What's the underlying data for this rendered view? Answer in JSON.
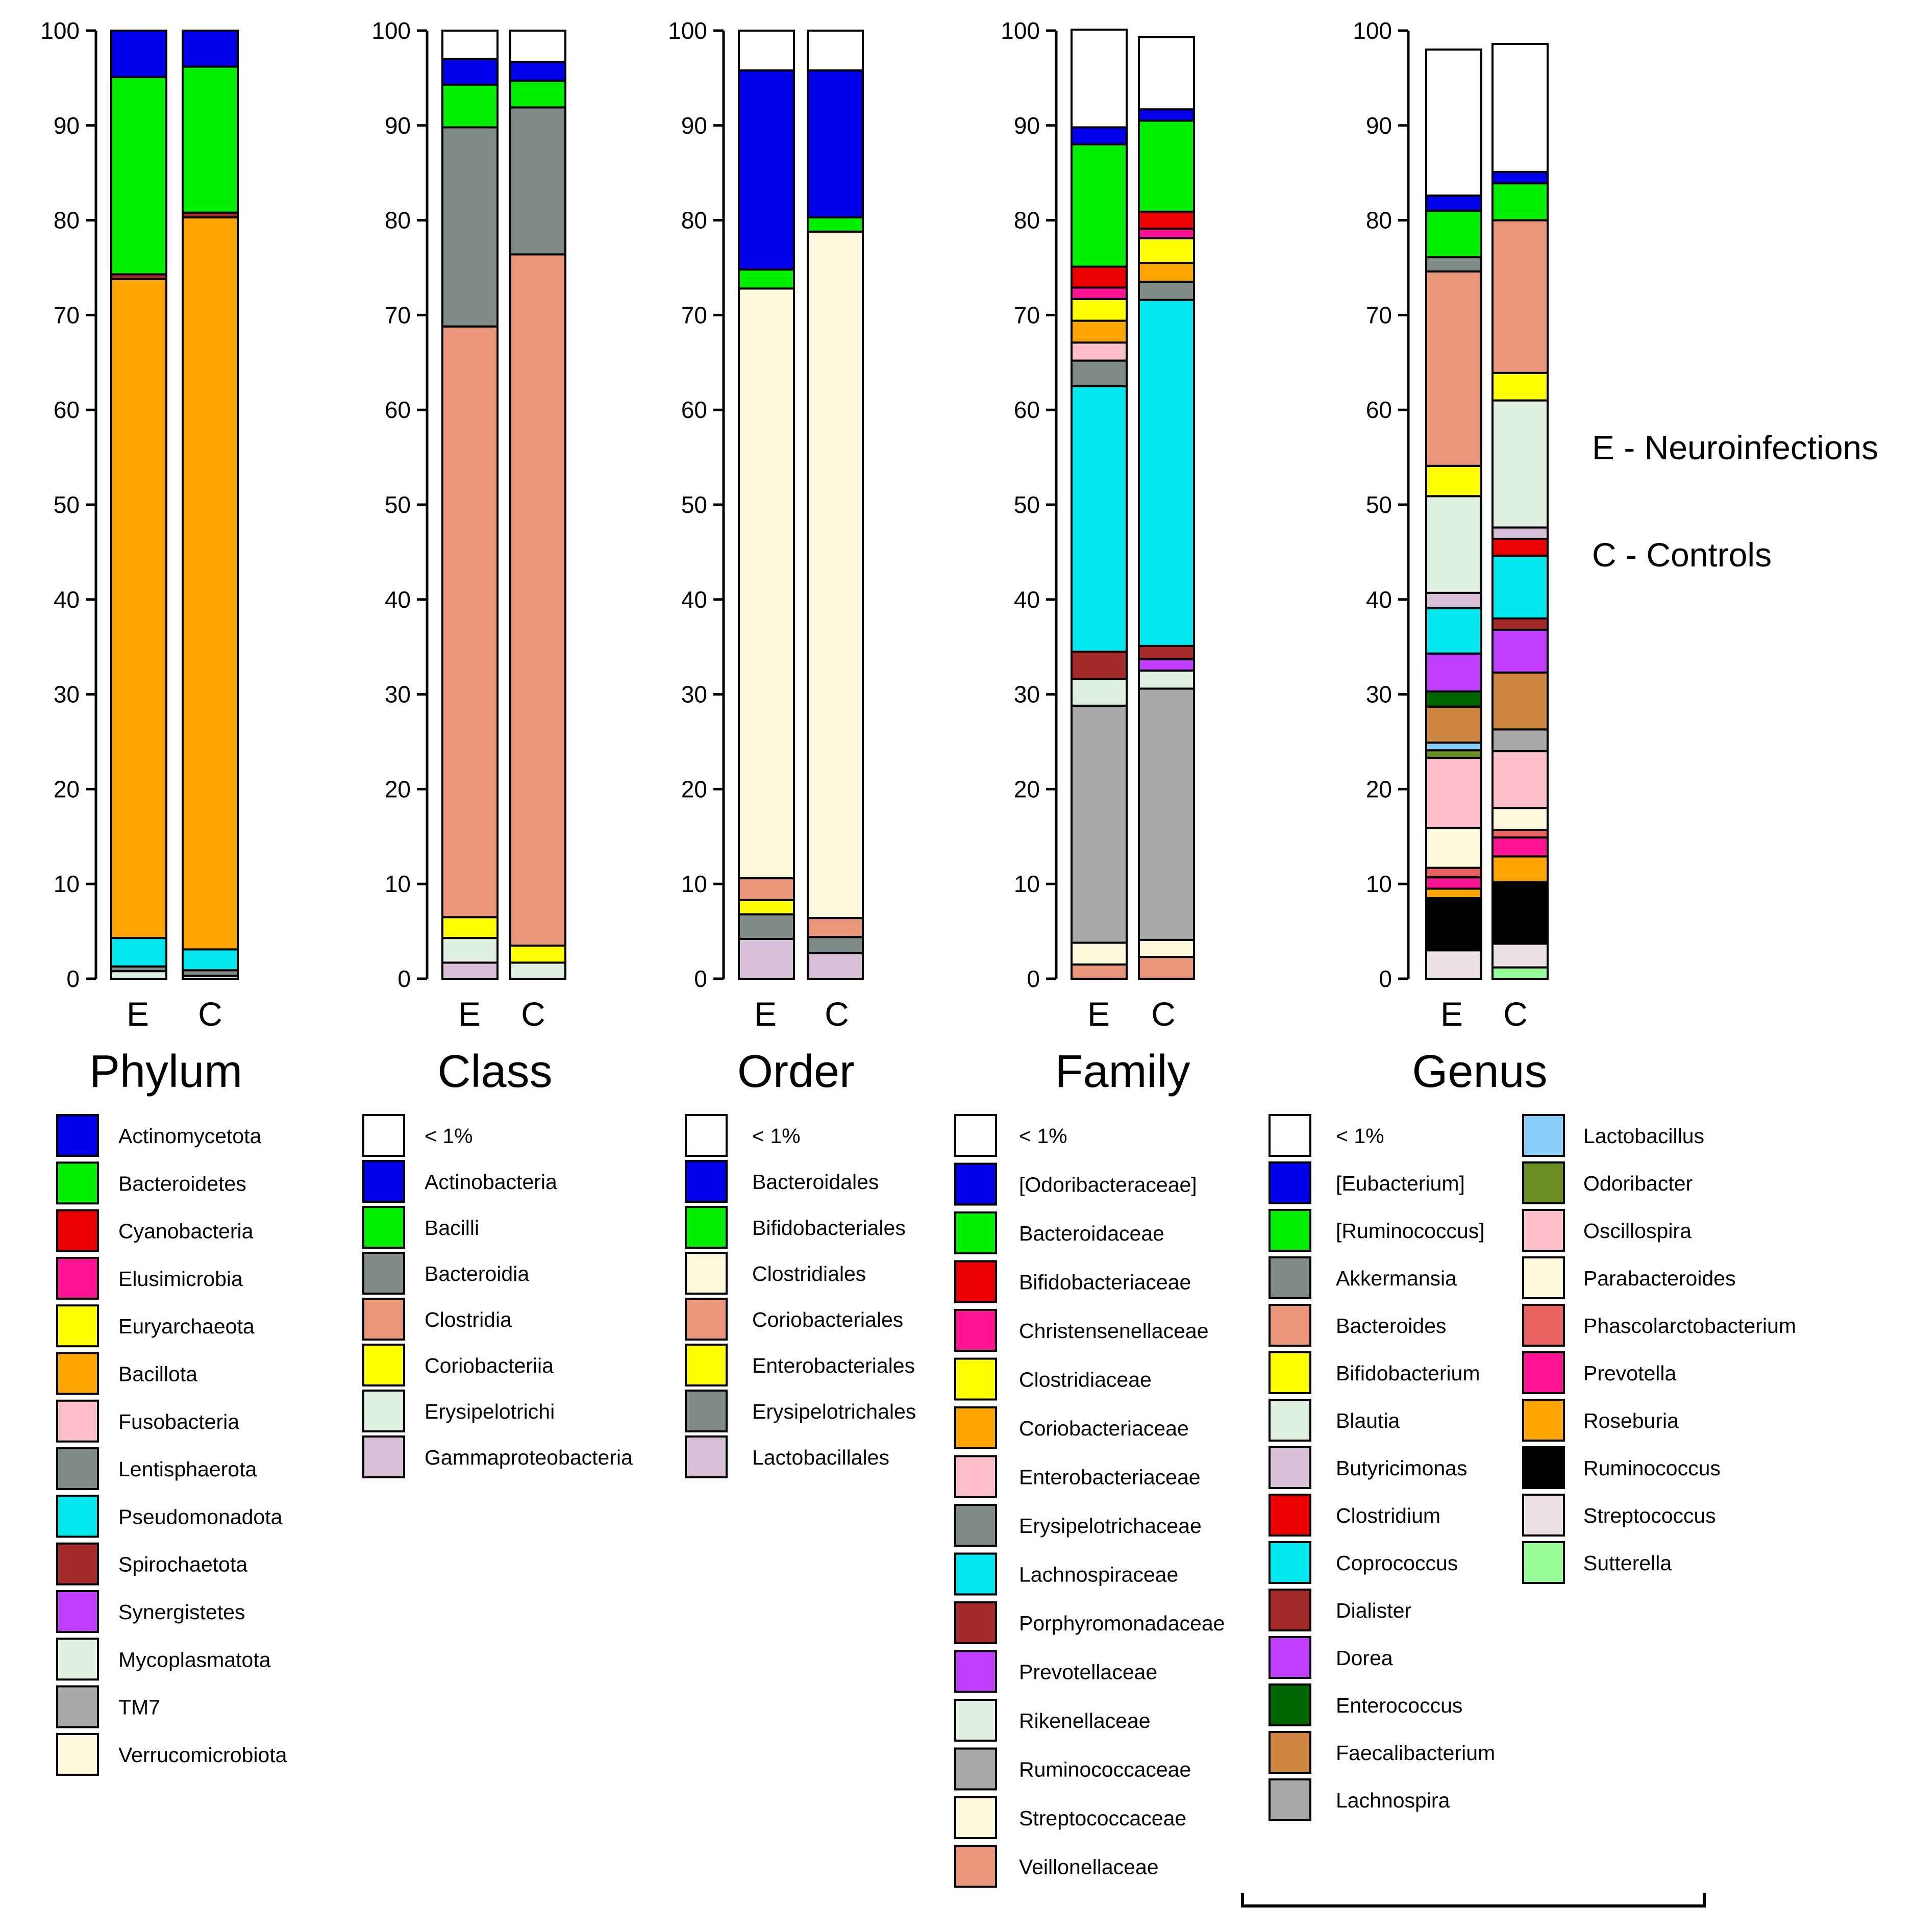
{
  "notes": {
    "e_label": "E - Neuroinfections",
    "c_label": "C - Controls"
  },
  "chart_data": [
    {
      "type": "bar",
      "stacked": true,
      "title": "Phylum",
      "categories": [
        "E",
        "C"
      ],
      "ylim": [
        0,
        100
      ],
      "yticks": [
        0,
        10,
        20,
        30,
        40,
        50,
        60,
        70,
        80,
        90,
        100
      ],
      "series": [
        {
          "name": "Mycoplasmatota",
          "color": "#e0f0e0",
          "values": [
            0.8,
            0.3
          ]
        },
        {
          "name": "Lentisphaerota",
          "color": "#7f8c8a",
          "values": [
            0.5,
            0.6
          ]
        },
        {
          "name": "Pseudomonadota",
          "color": "#00e8ee",
          "values": [
            3.0,
            2.2
          ]
        },
        {
          "name": "Bacillota",
          "color": "#ffa500",
          "values": [
            69.5,
            77.2
          ]
        },
        {
          "name": "Spirochaetota",
          "color": "#a52a2a",
          "values": [
            0.5,
            0.5
          ]
        },
        {
          "name": "Bacteroidetes",
          "color": "#00ee00",
          "values": [
            20.8,
            15.4
          ]
        },
        {
          "name": "Actinomycetota",
          "color": "#0000ee",
          "values": [
            4.9,
            3.8
          ]
        }
      ]
    },
    {
      "type": "bar",
      "stacked": true,
      "title": "Class",
      "categories": [
        "E",
        "C"
      ],
      "ylim": [
        0,
        100
      ],
      "yticks": [
        0,
        10,
        20,
        30,
        40,
        50,
        60,
        70,
        80,
        90,
        100
      ],
      "series": [
        {
          "name": "Gammaproteobacteria",
          "color": "#d8bfd8",
          "values": [
            1.7,
            0.0
          ]
        },
        {
          "name": "Erysipelotrichi",
          "color": "#e0f0e0",
          "values": [
            2.6,
            1.7
          ]
        },
        {
          "name": "Coriobacteriia",
          "color": "#ffff00",
          "values": [
            2.2,
            1.8
          ]
        },
        {
          "name": "Clostridia",
          "color": "#e9967a",
          "values": [
            62.3,
            72.9
          ]
        },
        {
          "name": "Bacteroidia",
          "color": "#7f8c8a",
          "values": [
            21.0,
            15.5
          ]
        },
        {
          "name": "Bacilli",
          "color": "#00ee00",
          "values": [
            4.5,
            2.8
          ]
        },
        {
          "name": "Actinobacteria",
          "color": "#0000ee",
          "values": [
            2.7,
            2.0
          ]
        },
        {
          "name": "< 1%",
          "color": "#ffffff",
          "values": [
            3.0,
            3.3
          ]
        }
      ]
    },
    {
      "type": "bar",
      "stacked": true,
      "title": "Order",
      "categories": [
        "E",
        "C"
      ],
      "ylim": [
        0,
        100
      ],
      "yticks": [
        0,
        10,
        20,
        30,
        40,
        50,
        60,
        70,
        80,
        90,
        100
      ],
      "series": [
        {
          "name": "Lactobacillales",
          "color": "#d8bfd8",
          "values": [
            4.2,
            2.7
          ]
        },
        {
          "name": "Erysipelotrichales",
          "color": "#7f8c8a",
          "values": [
            2.6,
            1.7
          ]
        },
        {
          "name": "Enterobacteriales",
          "color": "#ffff00",
          "values": [
            1.5,
            0.0
          ]
        },
        {
          "name": "Coriobacteriales",
          "color": "#e9967a",
          "values": [
            2.3,
            2.0
          ]
        },
        {
          "name": "Clostridiales",
          "color": "#fff8dc",
          "values": [
            62.2,
            72.4
          ]
        },
        {
          "name": "Bifidobacteriales",
          "color": "#00ee00",
          "values": [
            2.0,
            1.5
          ]
        },
        {
          "name": "Bacteroidales",
          "color": "#0000ee",
          "values": [
            21.0,
            15.5
          ]
        },
        {
          "name": "< 1%",
          "color": "#ffffff",
          "values": [
            4.2,
            4.2
          ]
        }
      ]
    },
    {
      "type": "bar",
      "stacked": true,
      "title": "Family",
      "categories": [
        "E",
        "C"
      ],
      "ylim": [
        0,
        100
      ],
      "yticks": [
        0,
        10,
        20,
        30,
        40,
        50,
        60,
        70,
        80,
        90,
        100
      ],
      "series": [
        {
          "name": "Veillonellaceae",
          "color": "#e9967a",
          "values": [
            1.5,
            2.3
          ]
        },
        {
          "name": "Streptococcaceae",
          "color": "#fff8dc",
          "values": [
            2.3,
            1.8
          ]
        },
        {
          "name": "Ruminococcaceae",
          "color": "#a9a9a9",
          "values": [
            25.0,
            26.5
          ]
        },
        {
          "name": "Rikenellaceae",
          "color": "#e0f0e0",
          "values": [
            2.8,
            1.9
          ]
        },
        {
          "name": "Prevotellaceae",
          "color": "#bf3eff",
          "values": [
            0.0,
            1.2
          ]
        },
        {
          "name": "Porphyromonadaceae",
          "color": "#a52a2a",
          "values": [
            2.9,
            1.4
          ]
        },
        {
          "name": "Lachnospiraceae",
          "color": "#00e8ee",
          "values": [
            28.0,
            36.5
          ]
        },
        {
          "name": "Erysipelotrichaceae",
          "color": "#7f8c8a",
          "values": [
            2.7,
            1.9
          ]
        },
        {
          "name": "Enterobacteriaceae",
          "color": "#ffc0cb",
          "values": [
            1.9,
            0.0
          ]
        },
        {
          "name": "Coriobacteriaceae",
          "color": "#ffa500",
          "values": [
            2.3,
            2.0
          ]
        },
        {
          "name": "Clostridiaceae",
          "color": "#ffff00",
          "values": [
            2.3,
            2.6
          ]
        },
        {
          "name": "Christensenellaceae",
          "color": "#ff1493",
          "values": [
            1.2,
            1.0
          ]
        },
        {
          "name": "Bifidobacteriaceae",
          "color": "#ee0000",
          "values": [
            2.2,
            1.8
          ]
        },
        {
          "name": "Bacteroidaceae",
          "color": "#00ee00",
          "values": [
            12.9,
            9.6
          ]
        },
        {
          "name": "[Odoribacteraceae]",
          "color": "#0000ee",
          "values": [
            1.8,
            1.2
          ]
        },
        {
          "name": "< 1%",
          "color": "#ffffff",
          "values": [
            10.3,
            7.6
          ]
        }
      ]
    },
    {
      "type": "bar",
      "stacked": true,
      "title": "Genus",
      "categories": [
        "E",
        "C"
      ],
      "ylim": [
        0,
        100
      ],
      "yticks": [
        0,
        10,
        20,
        30,
        40,
        50,
        60,
        70,
        80,
        90,
        100
      ],
      "series": [
        {
          "name": "Sutterella",
          "color": "#98fb98",
          "values": [
            0.0,
            1.2
          ]
        },
        {
          "name": "Streptococcus",
          "color": "#ede0e4",
          "values": [
            3.0,
            2.5
          ]
        },
        {
          "name": "Ruminococcus",
          "color": "#000000",
          "values": [
            5.5,
            6.5
          ]
        },
        {
          "name": "Roseburia",
          "color": "#ffa500",
          "values": [
            1.0,
            2.7
          ]
        },
        {
          "name": "Prevotella",
          "color": "#ff1493",
          "values": [
            1.2,
            2.0
          ]
        },
        {
          "name": "Phascolarctobacterium",
          "color": "#e86060",
          "values": [
            1.0,
            0.8
          ]
        },
        {
          "name": "Parabacteroides",
          "color": "#fff8dc",
          "values": [
            4.2,
            2.3
          ]
        },
        {
          "name": "Oscillospira",
          "color": "#ffc0cb",
          "values": [
            7.4,
            6.0
          ]
        },
        {
          "name": "Odoribacter",
          "color": "#6b8e23",
          "values": [
            0.8,
            0.0
          ]
        },
        {
          "name": "Lactobacillus",
          "color": "#87cefa",
          "values": [
            0.8,
            0.0
          ]
        },
        {
          "name": "Lachnospira",
          "color": "#a9a9a9",
          "values": [
            0.0,
            2.3
          ]
        },
        {
          "name": "Faecalibacterium",
          "color": "#cd853f",
          "values": [
            3.8,
            6.0
          ]
        },
        {
          "name": "Enterococcus",
          "color": "#006400",
          "values": [
            1.6,
            0.0
          ]
        },
        {
          "name": "Dorea",
          "color": "#bf3eff",
          "values": [
            4.0,
            4.5
          ]
        },
        {
          "name": "Dialister",
          "color": "#a52a2a",
          "values": [
            0.0,
            1.2
          ]
        },
        {
          "name": "Coprococcus",
          "color": "#00e8ee",
          "values": [
            4.8,
            6.6
          ]
        },
        {
          "name": "Clostridium",
          "color": "#ee0000",
          "values": [
            0.0,
            1.8
          ]
        },
        {
          "name": "Butyricimonas",
          "color": "#d8bfd8",
          "values": [
            1.6,
            1.2
          ]
        },
        {
          "name": "Blautia",
          "color": "#e0f0e0",
          "values": [
            10.2,
            13.4
          ]
        },
        {
          "name": "Bifidobacterium",
          "color": "#ffff00",
          "values": [
            3.2,
            2.9
          ]
        },
        {
          "name": "Bacteroides",
          "color": "#e9967a",
          "values": [
            20.5,
            16.1
          ]
        },
        {
          "name": "Akkermansia",
          "color": "#7f8c8a",
          "values": [
            1.5,
            0.0
          ]
        },
        {
          "name": "[Ruminococcus]",
          "color": "#00ee00",
          "values": [
            4.9,
            3.9
          ]
        },
        {
          "name": "[Eubacterium]",
          "color": "#0000ee",
          "values": [
            1.6,
            1.2
          ]
        },
        {
          "name": "< 1%",
          "color": "#ffffff",
          "values": [
            15.4,
            13.5
          ]
        }
      ]
    }
  ],
  "legends": [
    {
      "title": "Phylum",
      "items": [
        {
          "label": "Actinomycetota",
          "color": "#0000ee"
        },
        {
          "label": "Bacteroidetes",
          "color": "#00ee00"
        },
        {
          "label": "Cyanobacteria",
          "color": "#ee0000"
        },
        {
          "label": "Elusimicrobia",
          "color": "#ff1493"
        },
        {
          "label": "Euryarchaeota",
          "color": "#ffff00"
        },
        {
          "label": "Bacillota",
          "color": "#ffa500"
        },
        {
          "label": "Fusobacteria",
          "color": "#ffc0cb"
        },
        {
          "label": "Lentisphaerota",
          "color": "#7f8c8a"
        },
        {
          "label": "Pseudomonadota",
          "color": "#00e8ee"
        },
        {
          "label": "Spirochaetota",
          "color": "#a52a2a"
        },
        {
          "label": "Synergistetes",
          "color": "#bf3eff"
        },
        {
          "label": "Mycoplasmatota",
          "color": "#e0f0e0"
        },
        {
          "label": "TM7",
          "color": "#a9a9a9"
        },
        {
          "label": "Verrucomicrobiota",
          "color": "#fff8dc"
        }
      ]
    },
    {
      "title": "Class",
      "items": [
        {
          "label": "< 1%",
          "color": "#ffffff"
        },
        {
          "label": "Actinobacteria",
          "color": "#0000ee"
        },
        {
          "label": "Bacilli",
          "color": "#00ee00"
        },
        {
          "label": "Bacteroidia",
          "color": "#7f8c8a"
        },
        {
          "label": "Clostridia",
          "color": "#e9967a"
        },
        {
          "label": "Coriobacteriia",
          "color": "#ffff00"
        },
        {
          "label": "Erysipelotrichi",
          "color": "#e0f0e0"
        },
        {
          "label": "Gammaproteobacteria",
          "color": "#d8bfd8"
        }
      ]
    },
    {
      "title": "Order",
      "items": [
        {
          "label": "< 1%",
          "color": "#ffffff"
        },
        {
          "label": "Bacteroidales",
          "color": "#0000ee"
        },
        {
          "label": "Bifidobacteriales",
          "color": "#00ee00"
        },
        {
          "label": "Clostridiales",
          "color": "#fff8dc"
        },
        {
          "label": "Coriobacteriales",
          "color": "#e9967a"
        },
        {
          "label": "Enterobacteriales",
          "color": "#ffff00"
        },
        {
          "label": "Erysipelotrichales",
          "color": "#7f8c8a"
        },
        {
          "label": "Lactobacillales",
          "color": "#d8bfd8"
        }
      ]
    },
    {
      "title": "Family",
      "items": [
        {
          "label": "< 1%",
          "color": "#ffffff"
        },
        {
          "label": "[Odoribacteraceae]",
          "color": "#0000ee"
        },
        {
          "label": "Bacteroidaceae",
          "color": "#00ee00"
        },
        {
          "label": "Bifidobacteriaceae",
          "color": "#ee0000"
        },
        {
          "label": "Christensenellaceae",
          "color": "#ff1493"
        },
        {
          "label": "Clostridiaceae",
          "color": "#ffff00"
        },
        {
          "label": "Coriobacteriaceae",
          "color": "#ffa500"
        },
        {
          "label": "Enterobacteriaceae",
          "color": "#ffc0cb"
        },
        {
          "label": "Erysipelotrichaceae",
          "color": "#7f8c8a"
        },
        {
          "label": "Lachnospiraceae",
          "color": "#00e8ee"
        },
        {
          "label": "Porphyromonadaceae",
          "color": "#a52a2a"
        },
        {
          "label": "Prevotellaceae",
          "color": "#bf3eff"
        },
        {
          "label": "Rikenellaceae",
          "color": "#e0f0e0"
        },
        {
          "label": "Ruminococcaceae",
          "color": "#a9a9a9"
        },
        {
          "label": "Streptococcaceae",
          "color": "#fff8dc"
        },
        {
          "label": "Veillonellaceae",
          "color": "#e9967a"
        }
      ]
    },
    {
      "title": "Genus",
      "items": [
        {
          "label": "< 1%",
          "color": "#ffffff"
        },
        {
          "label": "[Eubacterium]",
          "color": "#0000ee"
        },
        {
          "label": "[Ruminococcus]",
          "color": "#00ee00"
        },
        {
          "label": "Akkermansia",
          "color": "#7f8c8a"
        },
        {
          "label": "Bacteroides",
          "color": "#e9967a"
        },
        {
          "label": "Bifidobacterium",
          "color": "#ffff00"
        },
        {
          "label": "Blautia",
          "color": "#e0f0e0"
        },
        {
          "label": "Butyricimonas",
          "color": "#d8bfd8"
        },
        {
          "label": "Clostridium",
          "color": "#ee0000"
        },
        {
          "label": "Coprococcus",
          "color": "#00e8ee"
        },
        {
          "label": "Dialister",
          "color": "#a52a2a"
        },
        {
          "label": "Dorea",
          "color": "#bf3eff"
        },
        {
          "label": "Enterococcus",
          "color": "#006400"
        },
        {
          "label": "Faecalibacterium",
          "color": "#cd853f"
        },
        {
          "label": "Lachnospira",
          "color": "#a9a9a9"
        },
        {
          "label": "Lactobacillus",
          "color": "#87cefa"
        },
        {
          "label": "Odoribacter",
          "color": "#6b8e23"
        },
        {
          "label": "Oscillospira",
          "color": "#ffc0cb"
        },
        {
          "label": "Parabacteroides",
          "color": "#fff8dc"
        },
        {
          "label": "Phascolarctobacterium",
          "color": "#e86060"
        },
        {
          "label": "Prevotella",
          "color": "#ff1493"
        },
        {
          "label": "Roseburia",
          "color": "#ffa500"
        },
        {
          "label": "Ruminococcus",
          "color": "#000000"
        },
        {
          "label": "Streptococcus",
          "color": "#ede0e4"
        },
        {
          "label": "Sutterella",
          "color": "#98fb98"
        }
      ]
    }
  ]
}
